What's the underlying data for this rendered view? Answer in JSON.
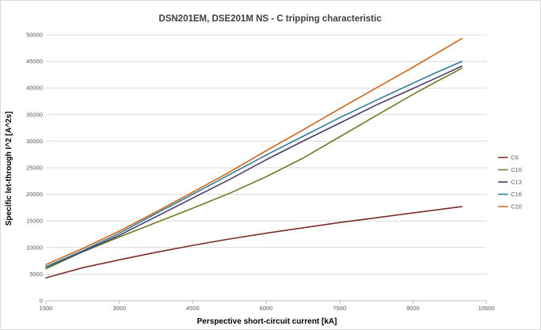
{
  "chart_data": {
    "type": "line",
    "title": "DSN201EM, DSE201M NS - C tripping characteristic",
    "xlabel": "Perspective short-circuit current [kA]",
    "ylabel": "Specific let-through I^2 [A^2s]",
    "xlim": [
      1500,
      10500
    ],
    "ylim": [
      0,
      50000
    ],
    "x_ticks": [
      "1500",
      "3000",
      "4500",
      "6000",
      "7500",
      "9000",
      "10500"
    ],
    "y_ticks": [
      "0",
      "5000",
      "10000",
      "15000",
      "20000",
      "25000",
      "30000",
      "35000",
      "40000",
      "45000",
      "50000"
    ],
    "grid": "horizontal",
    "legend_position": "right",
    "x": [
      1500,
      2250,
      3000,
      3750,
      4500,
      5250,
      6000,
      6750,
      7500,
      8250,
      9000,
      9500,
      10000
    ],
    "series": [
      {
        "name": "C6",
        "color": "#7b2c2c",
        "values": [
          4300,
          6200,
          7700,
          9100,
          10400,
          11600,
          12700,
          13700,
          14700,
          15600,
          16500,
          17100,
          17700
        ]
      },
      {
        "name": "C10",
        "color": "#6e7a26",
        "values": [
          6000,
          9200,
          12000,
          14700,
          17400,
          20200,
          23300,
          26800,
          30800,
          34800,
          38800,
          41300,
          43700
        ]
      },
      {
        "name": "C13",
        "color": "#4b3a6b",
        "values": [
          6300,
          9200,
          12300,
          15800,
          19300,
          22800,
          26500,
          30000,
          33400,
          36800,
          39900,
          42000,
          44100
        ]
      },
      {
        "name": "C16",
        "color": "#2e7d96",
        "values": [
          6400,
          9400,
          12700,
          16400,
          20000,
          23700,
          27400,
          30900,
          34400,
          37700,
          40900,
          43000,
          45000
        ]
      },
      {
        "name": "C20",
        "color": "#d0651a",
        "values": [
          6800,
          9800,
          13100,
          16700,
          20400,
          24200,
          28200,
          32100,
          36100,
          40000,
          43900,
          46600,
          49300
        ]
      }
    ]
  }
}
